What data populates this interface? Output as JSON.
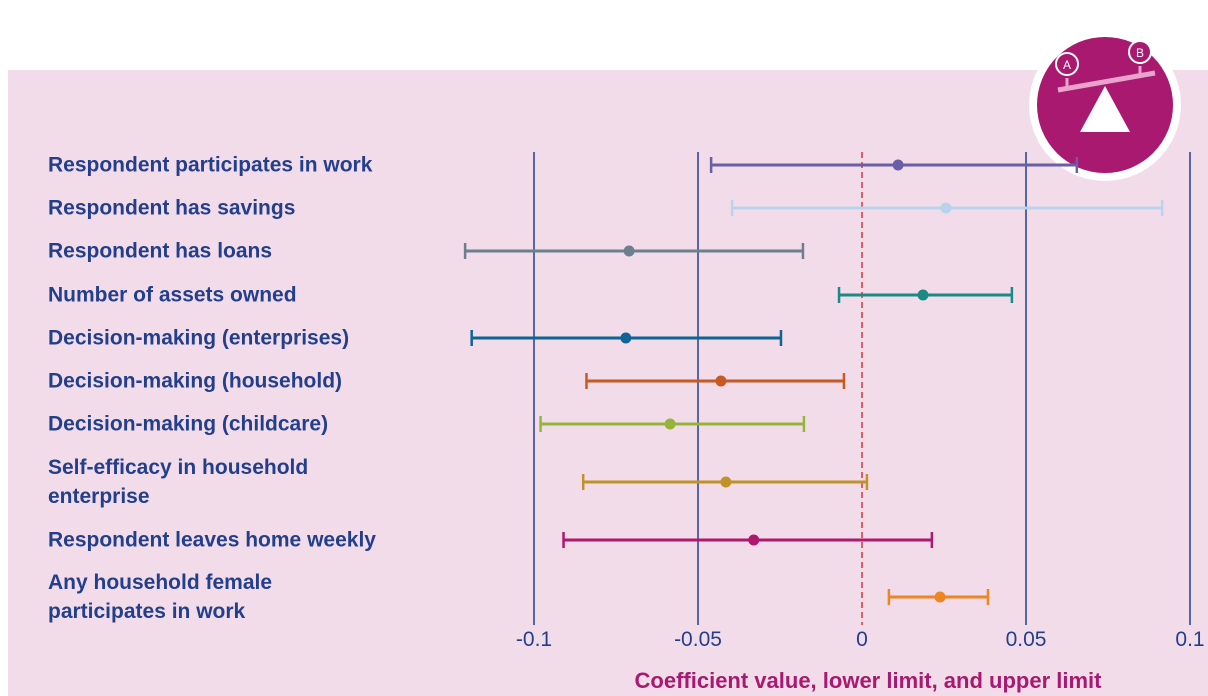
{
  "chart_data": {
    "type": "errorbar",
    "x_label": "Coefficient value, lower limit, and upper limit",
    "categories": [
      "Respondent participates in work",
      "Respondent has savings",
      "Respondent has loans",
      "Number of assets owned",
      "Decision-making (enterprises)",
      "Decision-making (household)",
      "Decision-making (childcare)",
      "Self-efficacy in household\nenterprise",
      "Respondent leaves home weekly",
      "Any household female\nparticipates in work"
    ],
    "values": [
      0.011,
      0.0256,
      -0.071,
      0.0186,
      -0.072,
      -0.043,
      -0.0585,
      -0.0415,
      -0.033,
      0.0238
    ],
    "lower": [
      -0.046,
      -0.0396,
      -0.121,
      -0.007,
      -0.119,
      -0.084,
      -0.098,
      -0.085,
      -0.091,
      0.0082
    ],
    "upper": [
      0.0655,
      0.0915,
      -0.018,
      0.0457,
      -0.0247,
      -0.0055,
      -0.0177,
      0.0015,
      0.0213,
      0.0384
    ],
    "colors": [
      "#6b5ea8",
      "#b9d3ee",
      "#6d7f8e",
      "#1a8a87",
      "#0f6496",
      "#c75a23",
      "#97b43a",
      "#c2922a",
      "#b0186f",
      "#ed8522"
    ],
    "xlim": [
      -0.1,
      0.1
    ],
    "xticks": [
      -0.1,
      -0.05,
      0,
      0.05,
      0.1
    ],
    "grid": true,
    "reference_line": 0
  }
}
